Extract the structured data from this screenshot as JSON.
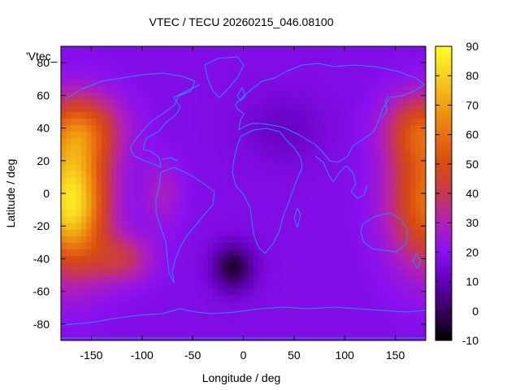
{
  "chart_data": {
    "type": "heatmap",
    "title": "VTEC / TECU 20260215_046.08100",
    "xlabel": "Longitude / deg",
    "ylabel": "Latitude / deg",
    "series_key": "'Vtec_",
    "xlim": [
      -180,
      180
    ],
    "ylim": [
      -90,
      90
    ],
    "x_ticks": [
      -150,
      -100,
      -50,
      0,
      50,
      100,
      150
    ],
    "y_ticks": [
      -80,
      -60,
      -40,
      -20,
      0,
      20,
      40,
      60,
      80
    ],
    "colorbar": {
      "min": -10,
      "max": 90,
      "ticks": [
        -10,
        0,
        10,
        20,
        30,
        40,
        50,
        60,
        70,
        80,
        90
      ],
      "palette": "black-purple-red-orange-yellow"
    },
    "features": [
      {
        "name": "maximum",
        "lon": -170,
        "lat": -5,
        "vtec": 85
      },
      {
        "name": "maximum",
        "lon": 180,
        "lat": -5,
        "vtec": 60
      },
      {
        "name": "minimum",
        "lon": -10,
        "lat": -45,
        "vtec": -5
      }
    ],
    "overlay": "coastlines"
  }
}
